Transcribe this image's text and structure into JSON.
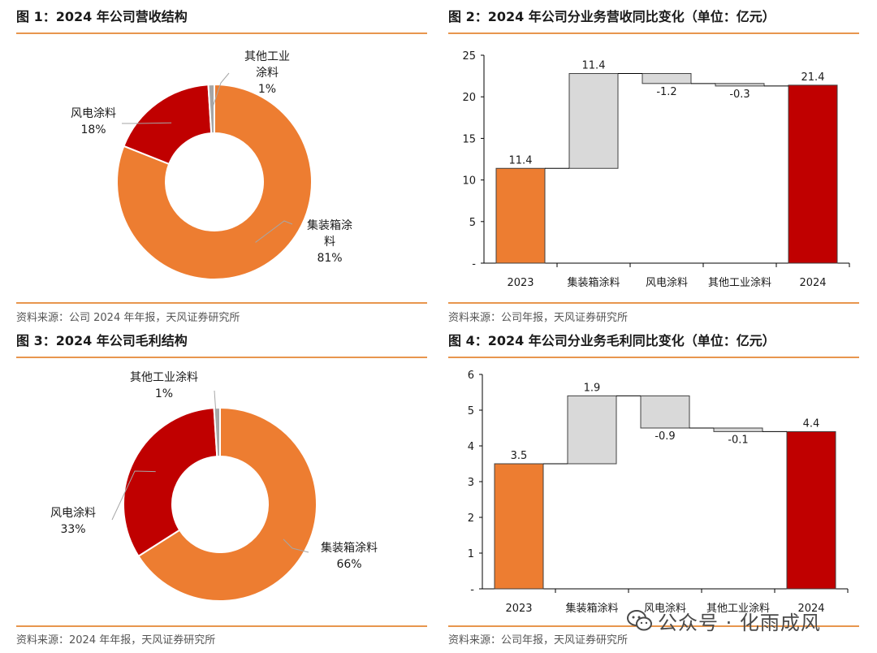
{
  "figures": [
    {
      "title": "图 1：2024 年公司营收结构",
      "source": "资料来源：公司 2024 年年报，天风证券研究所"
    },
    {
      "title": "图 2：2024 年公司分业务营收同比变化（单位：亿元）",
      "source": "资料来源：公司年报，天风证券研究所"
    },
    {
      "title": "图 3：2024 年公司毛利结构",
      "source": "资料来源：2024 年年报，天风证券研究所"
    },
    {
      "title": "图 4：2024 年公司分业务毛利同比变化（单位：亿元）",
      "source": "资料来源：公司年报，天风证券研究所"
    }
  ],
  "chart_data": [
    {
      "type": "pie",
      "title": "图 1：2024 年公司营收结构",
      "slices": [
        {
          "label": "集装箱涂料",
          "label_lines": [
            "集装箱涂",
            "料"
          ],
          "pct_text": "81%",
          "value": 81,
          "color": "#ed7d31"
        },
        {
          "label": "风电涂料",
          "label_lines": [
            "风电涂料"
          ],
          "pct_text": "18%",
          "value": 18,
          "color": "#c00000"
        },
        {
          "label": "其他工业涂料",
          "label_lines": [
            "其他工业",
            "涂料"
          ],
          "pct_text": "1%",
          "value": 1,
          "color": "#a6a6a6"
        }
      ]
    },
    {
      "type": "bar",
      "subtype": "waterfall",
      "title": "图 2：2024 年公司分业务营收同比变化（单位：亿元）",
      "categories": [
        "2023",
        "集装箱涂料",
        "风电涂料",
        "其他工业涂料",
        "2024"
      ],
      "values": [
        11.4,
        11.4,
        -1.2,
        -0.3,
        21.4
      ],
      "value_labels": [
        "11.4",
        "11.4",
        "-1.2",
        "-0.3",
        "21.4"
      ],
      "kinds": [
        "total",
        "delta",
        "delta",
        "delta",
        "total"
      ],
      "ylim": [
        0,
        25
      ],
      "yticks": [
        0,
        5,
        10,
        15,
        20,
        25
      ],
      "ytick_labels": [
        "-",
        "5",
        "10",
        "15",
        "20",
        "25"
      ],
      "colors": {
        "start": "#ed7d31",
        "delta": "#d9d9d9",
        "end": "#c00000"
      }
    },
    {
      "type": "pie",
      "title": "图 3：2024 年公司毛利结构",
      "slices": [
        {
          "label": "集装箱涂料",
          "label_lines": [
            "集装箱涂料"
          ],
          "pct_text": "66%",
          "value": 66,
          "color": "#ed7d31"
        },
        {
          "label": "风电涂料",
          "label_lines": [
            "风电涂料"
          ],
          "pct_text": "33%",
          "value": 33,
          "color": "#c00000"
        },
        {
          "label": "其他工业涂料",
          "label_lines": [
            "其他工业涂料"
          ],
          "pct_text": "1%",
          "value": 1,
          "color": "#a6a6a6"
        }
      ]
    },
    {
      "type": "bar",
      "subtype": "waterfall",
      "title": "图 4：2024 年公司分业务毛利同比变化（单位：亿元）",
      "categories": [
        "2023",
        "集装箱涂料",
        "风电涂料",
        "其他工业涂料",
        "2024"
      ],
      "values": [
        3.5,
        1.9,
        -0.9,
        -0.1,
        4.4
      ],
      "value_labels": [
        "3.5",
        "1.9",
        "-0.9",
        "-0.1",
        "4.4"
      ],
      "kinds": [
        "total",
        "delta",
        "delta",
        "delta",
        "total"
      ],
      "ylim": [
        0,
        6
      ],
      "yticks": [
        0,
        1,
        2,
        3,
        4,
        5,
        6
      ],
      "ytick_labels": [
        "-",
        "1",
        "2",
        "3",
        "4",
        "5",
        "6"
      ],
      "colors": {
        "start": "#ed7d31",
        "delta": "#d9d9d9",
        "end": "#c00000"
      }
    }
  ],
  "watermark": {
    "text": "公众号 · 化雨成风",
    "icon": "wechat-icon"
  }
}
